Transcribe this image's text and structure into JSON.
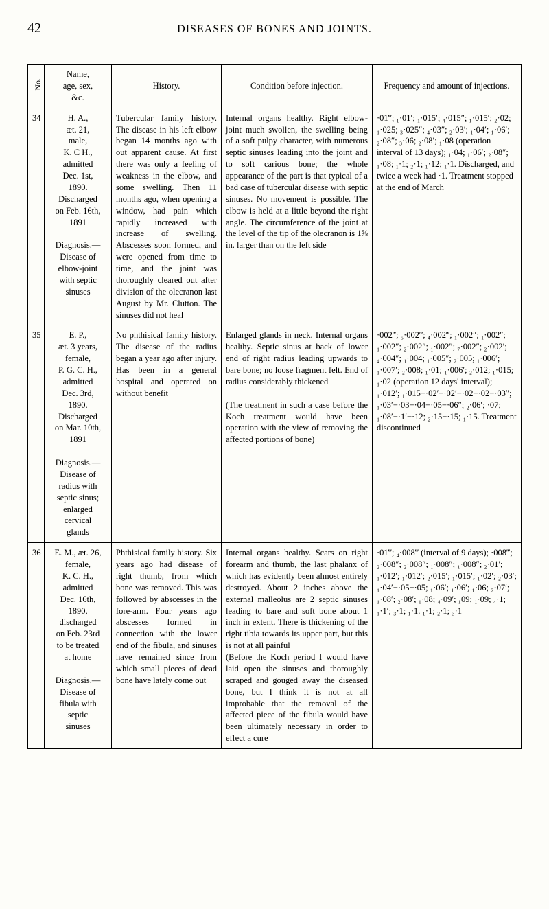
{
  "page": {
    "number": "42",
    "title": "DISEASES OF BONES AND JOINTS."
  },
  "table": {
    "headers": {
      "no": "No.",
      "name": "Name,\nage, sex,\n&c.",
      "history": "History.",
      "condition": "Condition before injection.",
      "frequency": "Frequency and amount of injections."
    },
    "rows": [
      {
        "no": "34",
        "name": "H. A.,\næt. 21,\nmale,\nK. C  H.,\nadmitted\nDec. 1st,\n1890.\nDischarged\non Feb. 16th,\n1891\n\nDiagnosis.—\nDisease of\nelbow-joint\nwith septic\nsinuses",
        "history": "Tubercular family history. The disease in his left elbow began 14 months ago with out apparent cause. At first there was only a feeling of weakness in the elbow, and some swelling. Then 11 months ago, when opening a window, had pain which rapidly increased with increase of swelling. Abscesses soon formed, and were opened from time to time, and the joint was thoroughly cleared out after division of the olecranon last August by Mr. Clutton. The sinuses did not heal",
        "condition": "Internal organs healthy. Right elbow-joint much swollen, the swelling being of a soft pulpy character, with numerous septic sinuses leading into the joint and to soft carious bone; the whole appearance of the part is that typical of a bad case of tubercular disease with septic sinuses. No movement is possible. The elbow is held at a little beyond the right angle. The circumference of the joint at the level of the tip of the olecranon is 1⅝ in. larger than on the left side",
        "frequency": "·01‴; ₁·01′; ₁·015′; ₄·015″; ₁·015′; ₂·02; ₁·025; ₃·025″; ₄·03″; ₂·03′; ₁·04′; ₁·06′; ₂·08″; ₃·06; ₂·08′; ₁·08 (operation interval of 13 days); ₁·04; ₁·06′; ₂·08″; ₁·08; ₁·1; ₂·1; ₁·12; ₁·1. Discharged, and twice a week had ·1. Treatment stopped at the end of March"
      },
      {
        "no": "35",
        "name": "E. P.,\næt. 3 years,\nfemale,\nP. G. C. H.,\nadmitted\nDec. 3rd,\n1890.\nDischarged\non Mar. 10th,\n1891\n\nDiagnosis.—\nDisease of\nradius with\nseptic sinus;\nenlarged\ncervical\nglands",
        "history": "No phthisical family history. The disease of the radius began a year ago after injury. Has been in a general hospital and operated on without benefit",
        "condition": "Enlarged glands in neck. Internal organs healthy. Septic sinus at back of lower end of right radius leading upwards to bare bone; no loose fragment felt. End of radius considerably thickened\n\n(The treatment in such a case before the Koch treatment would have been operation with the view of removing the affected portions of bone)",
        "frequency": "·002‴; ₅·002‴; ₄·002‴; ₁·002″; ₁·002″; ₁·002″; ₂·002″; ₁·002″; ₇·002″; ₂·002′; ₄·004″; ₁·004; ₁·005″; ₂·005; ₁·006′; ₁·007′; ₂·008; ₁·01; ₁·006′; ₂·012; ₁·015; ₁·02 (operation 12 days' interval); ₁·012′; ₁·015−·02′−·02′−·02−·02−·03″; ₁·03′−·03−·04−·05−·06″; ₂·06′; ·07; ₁·08′−·1′−·12; ₂·15−·15; ₁·15. Treatment discontinued"
      },
      {
        "no": "36",
        "name": "E. M., æt. 26,\nfemale,\nK. C. H.,\nadmitted\nDec. 16th,\n1890,\ndischarged\non Feb. 23rd\nto be treated\nat home\n\nDiagnosis.—\nDisease of\nfibula with\nseptic\nsinuses",
        "history": "Phthisical family history. Six years ago had disease of right thumb, from which bone was removed. This was followed by abscesses in the fore-arm. Four years ago abscesses formed in connection with the lower end of the fibula, and sinuses have remained since from which small pieces of dead bone have lately come out",
        "condition": "Internal organs healthy. Scars on right forearm and thumb, the last phalanx of which has evidently been almost entirely destroyed. About 2 inches above the external malleolus are 2 septic sinuses leading to bare and soft bone about 1 inch in extent. There is thickening of the right tibia towards its upper part, but this is not at all painful\n(Before the Koch period I would have laid open the sinuses and thoroughly scraped and gouged away the diseased bone, but I think it is not at all improbable that the removal of the affected piece of the fibula would have been ultimately necessary in order to effect a cure",
        "frequency": "·01‴; ₄·008‴ (interval of 9 days); ·008‴; ₂·008″; ₂·008″; ₁·008″; ₁·008″; ₂·01′; ₁·012′; ₁·012′; ₂·015′; ₁·015′; ₁·02′; ₂·03′; ₁·04′−·05−·05; ₁·06′; ₁·06′; ₁·06; ₂·07′; ₁·08′; ₂·08′; ₁·08; ₄·09′; ₁09; ₁·09; ₄·1; ₁·1′; ₃·1; ₁·1.  ₁·1; ₂·1; ₃·1"
      }
    ]
  }
}
